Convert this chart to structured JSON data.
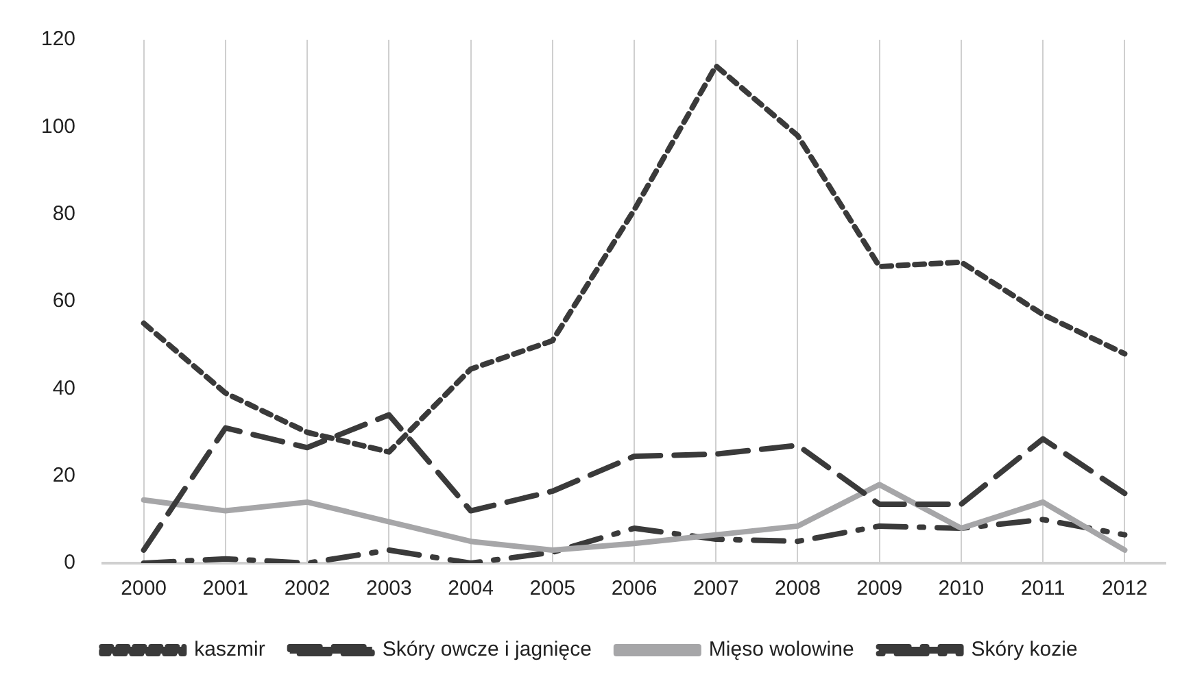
{
  "chart_data": {
    "type": "line",
    "categories": [
      "2000",
      "2001",
      "2002",
      "2003",
      "2004",
      "2005",
      "2006",
      "2007",
      "2008",
      "2009",
      "2010",
      "2011",
      "2012"
    ],
    "series": [
      {
        "name": "kaszmir",
        "color": "#3a3a3a",
        "line_style": "dashed",
        "values": [
          55,
          39,
          30,
          25.5,
          44.5,
          51,
          81,
          114,
          98,
          68,
          69,
          57,
          48
        ]
      },
      {
        "name": "Skóry owcze i jagnięce",
        "color": "#3a3a3a",
        "line_style": "longdash",
        "values": [
          3,
          31,
          26.5,
          34,
          12,
          16.5,
          24.5,
          25,
          27,
          13.5,
          13.5,
          28.5,
          16
        ]
      },
      {
        "name": "Mięso wolowine",
        "color": "#a6a6a8",
        "line_style": "solid",
        "values": [
          14.5,
          12,
          14,
          9.5,
          5,
          3,
          4.5,
          6.5,
          8.5,
          18,
          8,
          14,
          3
        ]
      },
      {
        "name": "Skóry kozie",
        "color": "#3a3a3a",
        "line_style": "dashdot",
        "values": [
          0,
          1,
          0,
          3,
          0,
          2.5,
          8,
          5.5,
          5,
          8.5,
          8,
          10,
          6.5
        ]
      }
    ],
    "ylim": [
      0,
      120
    ],
    "yticks": [
      0,
      20,
      40,
      60,
      80,
      100,
      120
    ],
    "grid": "x",
    "legend": "bottom",
    "marker": "none"
  }
}
